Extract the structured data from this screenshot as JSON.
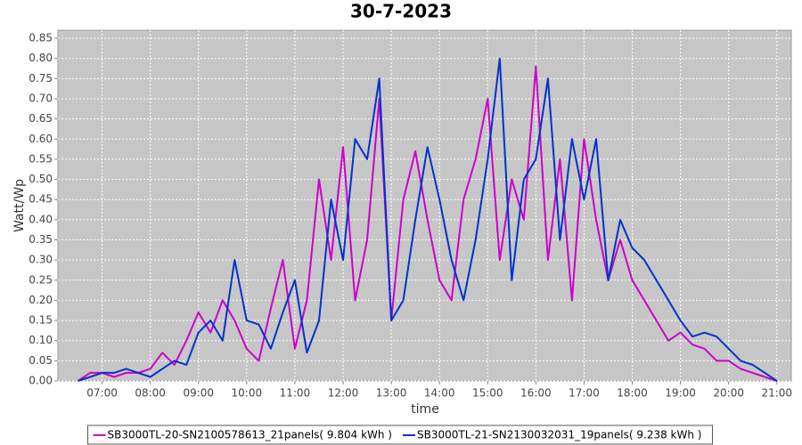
{
  "chart_data": {
    "type": "line",
    "title": "30-7-2023",
    "x_label": "time",
    "y_label": "Watt/Wp",
    "x": [
      "06:30",
      "06:45",
      "07:00",
      "07:15",
      "07:30",
      "07:45",
      "08:00",
      "08:15",
      "08:30",
      "08:45",
      "09:00",
      "09:15",
      "09:30",
      "09:45",
      "10:00",
      "10:15",
      "10:30",
      "10:45",
      "11:00",
      "11:15",
      "11:30",
      "11:45",
      "12:00",
      "12:15",
      "12:30",
      "12:45",
      "13:00",
      "13:15",
      "13:30",
      "13:45",
      "14:00",
      "14:15",
      "14:30",
      "14:45",
      "15:00",
      "15:15",
      "15:30",
      "15:45",
      "16:00",
      "16:15",
      "16:30",
      "16:45",
      "17:00",
      "17:15",
      "17:30",
      "17:45",
      "18:00",
      "18:15",
      "18:30",
      "18:45",
      "19:00",
      "19:15",
      "19:30",
      "19:45",
      "20:00",
      "20:15",
      "20:30",
      "20:45",
      "21:00"
    ],
    "series": [
      {
        "name": "SB3000TL-20-SN2100578613_21panels( 9.804 kWh )",
        "color": "#cc00cc",
        "values": [
          0.0,
          0.02,
          0.02,
          0.01,
          0.02,
          0.02,
          0.03,
          0.07,
          0.04,
          0.1,
          0.17,
          0.12,
          0.2,
          0.15,
          0.08,
          0.05,
          0.18,
          0.3,
          0.08,
          0.2,
          0.5,
          0.3,
          0.58,
          0.2,
          0.35,
          0.7,
          0.15,
          0.45,
          0.57,
          0.4,
          0.25,
          0.2,
          0.45,
          0.55,
          0.7,
          0.3,
          0.5,
          0.4,
          0.78,
          0.3,
          0.55,
          0.2,
          0.6,
          0.4,
          0.25,
          0.35,
          0.25,
          0.2,
          0.15,
          0.1,
          0.12,
          0.09,
          0.08,
          0.05,
          0.05,
          0.03,
          0.02,
          0.01,
          0.0
        ]
      },
      {
        "name": "SB3000TL-21-SN2130032031_19panels( 9.238 kWh )",
        "color": "#0033cc",
        "values": [
          0.0,
          0.01,
          0.02,
          0.02,
          0.03,
          0.02,
          0.01,
          0.03,
          0.05,
          0.04,
          0.12,
          0.15,
          0.1,
          0.3,
          0.15,
          0.14,
          0.08,
          0.17,
          0.25,
          0.07,
          0.15,
          0.45,
          0.3,
          0.6,
          0.55,
          0.75,
          0.15,
          0.2,
          0.4,
          0.58,
          0.45,
          0.3,
          0.2,
          0.35,
          0.55,
          0.8,
          0.25,
          0.5,
          0.55,
          0.75,
          0.35,
          0.6,
          0.45,
          0.6,
          0.25,
          0.4,
          0.33,
          0.3,
          0.25,
          0.2,
          0.15,
          0.11,
          0.12,
          0.11,
          0.08,
          0.05,
          0.04,
          0.02,
          0.0
        ]
      }
    ],
    "xlim": [
      "06:05",
      "21:18"
    ],
    "xticks": [
      "07:00",
      "08:00",
      "09:00",
      "10:00",
      "11:00",
      "12:00",
      "13:00",
      "14:00",
      "15:00",
      "16:00",
      "17:00",
      "18:00",
      "19:00",
      "20:00",
      "21:00"
    ],
    "ylim": [
      0,
      0.87
    ],
    "yticks": [
      {
        "value": 0,
        "label": "0.00"
      },
      {
        "value": 0.05,
        "label": "0.05"
      },
      {
        "value": 0.1,
        "label": "0.10"
      },
      {
        "value": 0.15,
        "label": "0.15"
      },
      {
        "value": 0.2,
        "label": "0.20"
      },
      {
        "value": 0.25,
        "label": "0.25"
      },
      {
        "value": 0.3,
        "label": "0.30"
      },
      {
        "value": 0.35,
        "label": "0.35"
      },
      {
        "value": 0.4,
        "label": "0.40"
      },
      {
        "value": 0.45,
        "label": "0.45"
      },
      {
        "value": 0.5,
        "label": "0.50"
      },
      {
        "value": 0.55,
        "label": "0.55"
      },
      {
        "value": 0.6,
        "label": "0.60"
      },
      {
        "value": 0.65,
        "label": "0.65"
      },
      {
        "value": 0.7,
        "label": "0.70"
      },
      {
        "value": 0.75,
        "label": "0.75"
      },
      {
        "value": 0.8,
        "label": "0.80"
      },
      {
        "value": 0.85,
        "label": "0.85"
      }
    ],
    "grid": true,
    "legend": "bottom",
    "plot_background": "#c6c6c6"
  }
}
